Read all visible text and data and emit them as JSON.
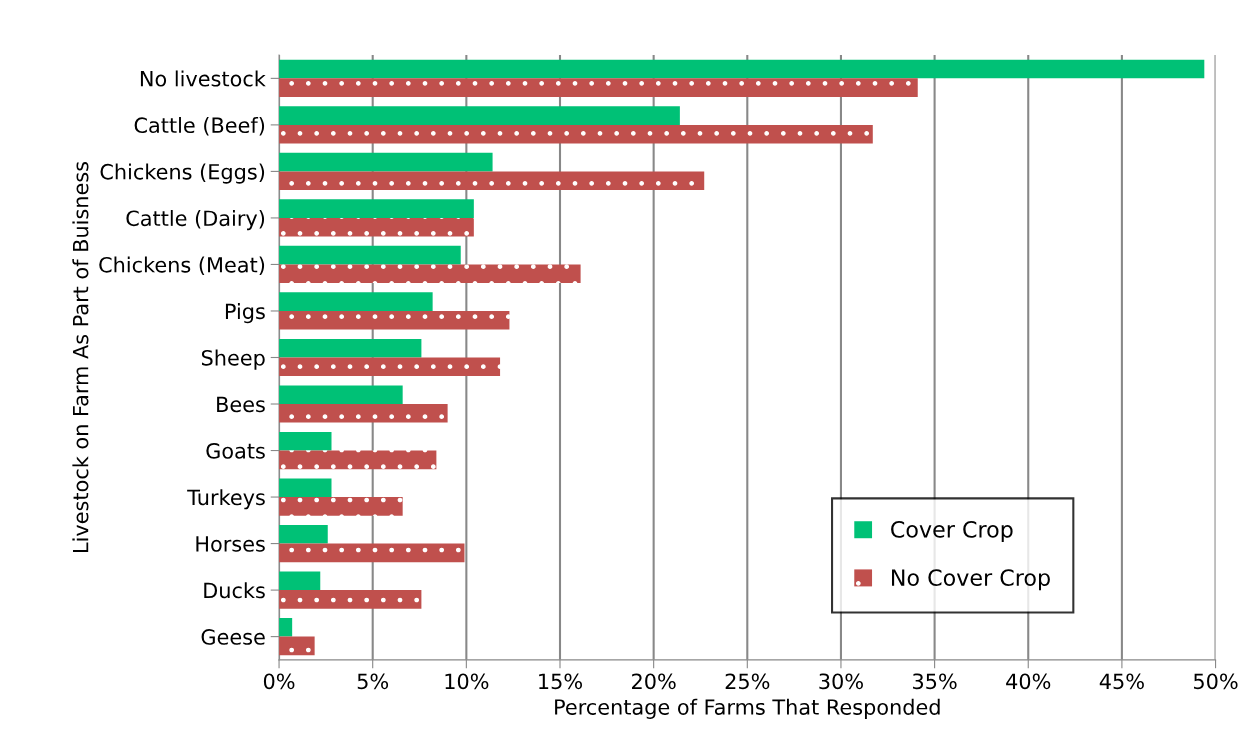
{
  "chart_data": {
    "type": "bar",
    "orientation": "horizontal",
    "xlabel": "Percentage of Farms That Responded",
    "ylabel": "Livestock on Farm As Part of Buisness",
    "categories": [
      "No livestock",
      "Cattle (Beef)",
      "Chickens (Eggs)",
      "Cattle (Dairy)",
      "Chickens (Meat)",
      "Pigs",
      "Sheep",
      "Bees",
      "Goats",
      "Turkeys",
      "Horses",
      "Ducks",
      "Geese"
    ],
    "series": [
      {
        "name": "Cover Crop",
        "color": "#00c176",
        "values": [
          49.4,
          21.4,
          11.4,
          10.4,
          9.7,
          8.2,
          7.6,
          6.6,
          2.8,
          2.8,
          2.6,
          2.2,
          0.7
        ]
      },
      {
        "name": "No Cover Crop",
        "color": "#c0504d",
        "values": [
          34.1,
          31.7,
          22.7,
          10.4,
          16.1,
          12.3,
          11.8,
          9.0,
          8.4,
          6.6,
          9.9,
          7.6,
          1.9
        ]
      }
    ],
    "xlim": [
      0,
      50
    ],
    "xticks": [
      {
        "value": 0,
        "label": "0%"
      },
      {
        "value": 5,
        "label": "5%"
      },
      {
        "value": 10,
        "label": "10%"
      },
      {
        "value": 15,
        "label": "15%"
      },
      {
        "value": 20,
        "label": "20%"
      },
      {
        "value": 25,
        "label": "25%"
      },
      {
        "value": 30,
        "label": "30%"
      },
      {
        "value": 35,
        "label": "35%"
      },
      {
        "value": 40,
        "label": "40%"
      },
      {
        "value": 45,
        "label": "45%"
      },
      {
        "value": 50,
        "label": "50%"
      }
    ],
    "grid": "x",
    "legend": "bottom right"
  }
}
